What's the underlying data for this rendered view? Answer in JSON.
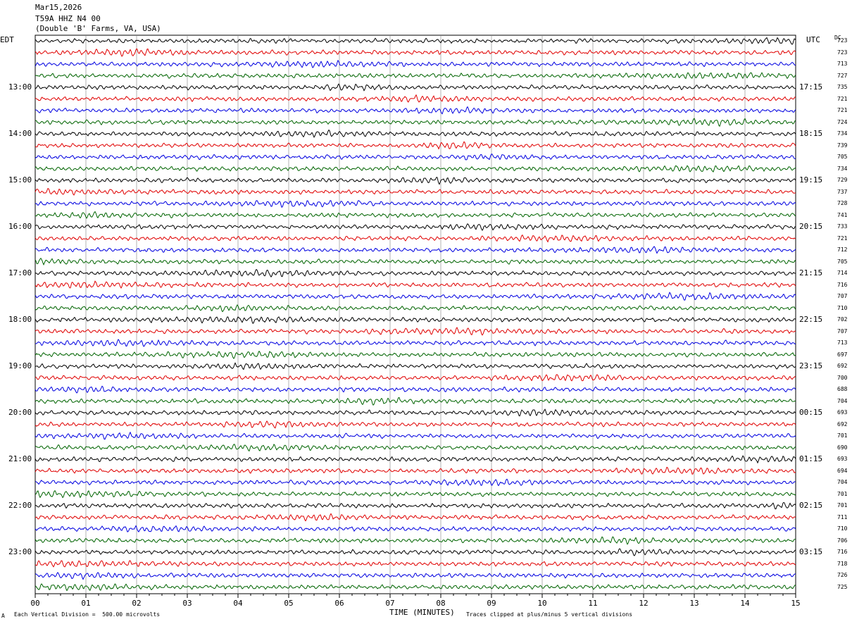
{
  "header": {
    "date": "Mar15,2026",
    "station": "T59A HHZ N4 00",
    "location": "(Double 'B' Farms, VA, USA)"
  },
  "left_tz": "EDT",
  "right_tz": "UTC",
  "dc_header": "DC",
  "footer": {
    "scale": "Each Vertical Division =  500.00 microvolts",
    "xlabel": "TIME (MINUTES)",
    "clip": "Traces clipped at plus/minus 5 vertical divisions",
    "corner": "A"
  },
  "colors": {
    "cycle": [
      "#000000",
      "#e00000",
      "#0000e0",
      "#006400"
    ],
    "grid": "#808080"
  },
  "chart_data": {
    "type": "line",
    "title": "T59A HHZ N4 00",
    "xlabel": "TIME (MINUTES)",
    "xlim": [
      0,
      15
    ],
    "x_ticks": [
      "00",
      "01",
      "02",
      "03",
      "04",
      "05",
      "06",
      "07",
      "08",
      "09",
      "10",
      "11",
      "12",
      "13",
      "14",
      "15"
    ],
    "left_hour_labels": [
      "13:00",
      "14:00",
      "15:00",
      "16:00",
      "17:00",
      "18:00",
      "19:00",
      "20:00",
      "21:00",
      "22:00",
      "23:00"
    ],
    "right_hour_labels": [
      "17:15",
      "18:15",
      "19:15",
      "20:15",
      "21:15",
      "22:15",
      "23:15",
      "00:15",
      "01:15",
      "02:15",
      "03:15"
    ],
    "trace_dc_offsets": [
      723,
      723,
      713,
      727,
      735,
      721,
      721,
      724,
      734,
      739,
      705,
      734,
      729,
      737,
      728,
      741,
      733,
      721,
      712,
      705,
      714,
      716,
      707,
      710,
      702,
      707,
      713,
      697,
      692,
      700,
      688,
      704,
      693,
      692,
      701,
      690,
      693,
      694,
      704,
      701,
      701,
      711,
      710,
      706,
      716,
      718,
      726,
      725
    ],
    "trace_count": 48,
    "minutes_per_trace": 15,
    "grid": true
  }
}
